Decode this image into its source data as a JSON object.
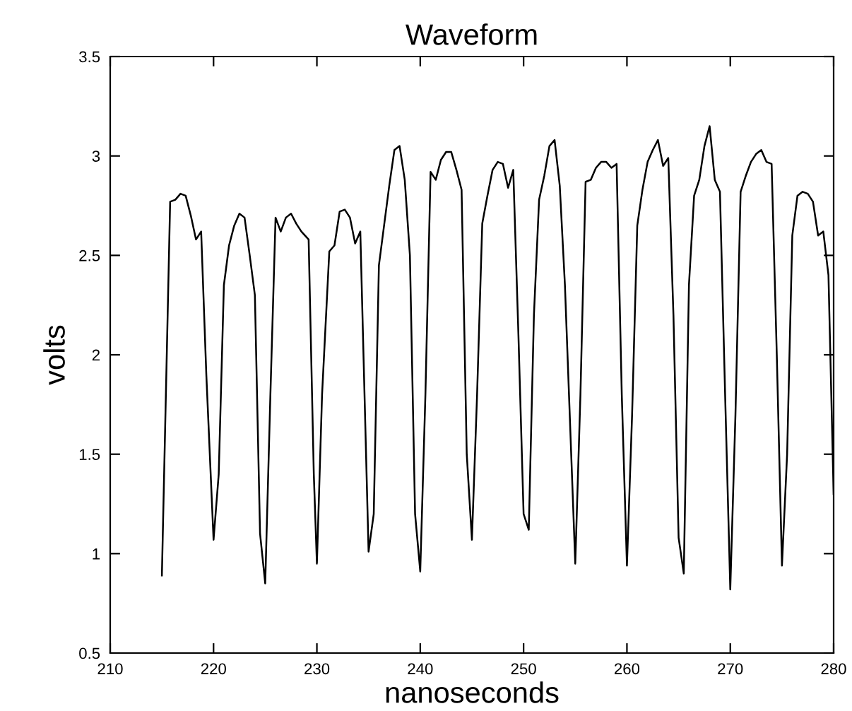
{
  "chart_data": {
    "type": "line",
    "title": "Waveform",
    "xlabel": "nanoseconds",
    "ylabel": "volts",
    "xlim": [
      210,
      280
    ],
    "ylim": [
      0.5,
      3.5
    ],
    "xticks": [
      210,
      220,
      230,
      240,
      250,
      260,
      270,
      280
    ],
    "yticks": [
      0.5,
      1,
      1.5,
      2,
      2.5,
      3,
      3.5
    ],
    "grid": false,
    "legend": false,
    "marker": "none",
    "line_style": "solid",
    "series": [
      {
        "color": "#000000",
        "x": [
          215,
          215.8,
          216.3,
          216.8,
          217.3,
          217.8,
          218.3,
          218.8,
          219.3,
          220,
          220.5,
          221,
          221.5,
          222,
          222.5,
          223,
          223.5,
          224,
          224.5,
          225,
          225.5,
          226,
          226.5,
          227,
          227.5,
          228,
          228.5,
          229.2,
          229.7,
          230,
          230.5,
          231.2,
          231.7,
          232.2,
          232.7,
          233.2,
          233.7,
          234.2,
          235,
          235.5,
          236,
          236.5,
          237,
          237.5,
          238,
          238.5,
          239,
          239.5,
          240,
          240.5,
          241,
          241.5,
          242,
          242.5,
          243,
          243.5,
          244,
          244.5,
          245,
          245.5,
          246,
          246.5,
          247,
          247.5,
          248,
          248.5,
          249,
          249.5,
          250,
          250.5,
          251,
          251.5,
          252,
          252.5,
          253,
          253.5,
          254,
          255,
          255.5,
          256,
          256.5,
          257,
          257.5,
          258,
          258.5,
          259,
          259.5,
          260,
          260.5,
          261,
          261.5,
          262,
          262.5,
          263,
          263.5,
          264,
          264.5,
          265,
          265.5,
          266,
          266.5,
          267,
          267.5,
          268,
          268.5,
          269,
          269.5,
          270,
          270.5,
          271,
          271.5,
          272,
          272.5,
          273,
          273.5,
          274,
          274.5,
          275,
          275.5,
          276,
          276.5,
          277,
          277.5,
          278,
          278.5,
          279,
          279.5,
          280
        ],
        "values": [
          0.89,
          2.77,
          2.78,
          2.81,
          2.8,
          2.7,
          2.58,
          2.62,
          1.9,
          1.07,
          1.4,
          2.35,
          2.55,
          2.65,
          2.71,
          2.69,
          2.5,
          2.3,
          1.1,
          0.85,
          1.8,
          2.69,
          2.62,
          2.69,
          2.71,
          2.66,
          2.62,
          2.58,
          1.4,
          0.95,
          1.8,
          2.52,
          2.55,
          2.72,
          2.73,
          2.69,
          2.56,
          2.62,
          1.01,
          1.2,
          2.45,
          2.65,
          2.85,
          3.03,
          3.05,
          2.88,
          2.5,
          1.2,
          0.91,
          1.8,
          2.92,
          2.88,
          2.98,
          3.02,
          3.02,
          2.93,
          2.83,
          1.5,
          1.07,
          1.8,
          2.66,
          2.8,
          2.93,
          2.97,
          2.96,
          2.84,
          2.93,
          2.1,
          1.2,
          1.12,
          2.2,
          2.78,
          2.9,
          3.05,
          3.08,
          2.85,
          2.35,
          0.95,
          1.8,
          2.87,
          2.88,
          2.94,
          2.97,
          2.97,
          2.94,
          2.96,
          1.8,
          0.94,
          1.7,
          2.65,
          2.83,
          2.97,
          3.03,
          3.08,
          2.95,
          2.99,
          2.2,
          1.08,
          0.9,
          2.35,
          2.8,
          2.88,
          3.05,
          3.15,
          2.88,
          2.82,
          1.8,
          0.82,
          1.7,
          2.82,
          2.9,
          2.97,
          3.01,
          3.03,
          2.97,
          2.96,
          2.0,
          0.94,
          1.5,
          2.6,
          2.8,
          2.82,
          2.81,
          2.77,
          2.6,
          2.62,
          2.4,
          1.3
        ]
      }
    ]
  }
}
